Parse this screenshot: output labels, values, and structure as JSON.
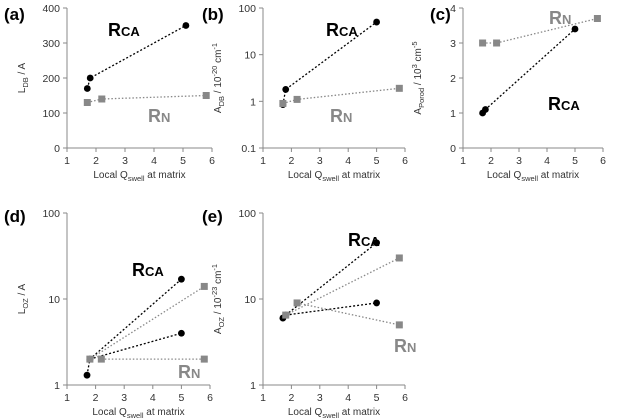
{
  "chart_data": [
    {
      "panel": "(a)",
      "type": "scatter",
      "xlabel": "Local Q_swell at matrix",
      "ylabel": "L_DB / A",
      "xlim": [
        1,
        6
      ],
      "ylim": [
        0,
        400
      ],
      "yscale": "linear",
      "xticks": [
        "1",
        "2",
        "3",
        "4",
        "5",
        "6"
      ],
      "yticks": [
        "0",
        "100",
        "200",
        "300",
        "400"
      ],
      "labels": [
        {
          "text": "RCA",
          "main": "R",
          "sub": "CA",
          "color": "#000000"
        },
        {
          "text": "RN",
          "main": "R",
          "sub": "N",
          "color": "#888888"
        }
      ],
      "series": [
        {
          "name": "RCA",
          "color": "#000000",
          "marker": "circle",
          "x": [
            1.7,
            1.8,
            5.1
          ],
          "y": [
            170,
            200,
            350
          ]
        },
        {
          "name": "RN",
          "color": "#888888",
          "marker": "square",
          "x": [
            1.7,
            2.2,
            5.8
          ],
          "y": [
            130,
            140,
            150
          ]
        }
      ]
    },
    {
      "panel": "(b)",
      "type": "scatter",
      "xlabel": "Local Q_swell at matrix",
      "ylabel": "A_DB / 10^-20 cm^-1",
      "xlim": [
        1,
        6
      ],
      "ylim": [
        0.1,
        100
      ],
      "yscale": "log",
      "xticks": [
        "1",
        "2",
        "3",
        "4",
        "5",
        "6"
      ],
      "yticks": [
        "0.1",
        "1",
        "10",
        "100"
      ],
      "labels": [
        {
          "text": "RCA",
          "main": "R",
          "sub": "CA",
          "color": "#000000"
        },
        {
          "text": "RN",
          "main": "R",
          "sub": "N",
          "color": "#888888"
        }
      ],
      "series": [
        {
          "name": "RCA",
          "color": "#000000",
          "marker": "circle",
          "x": [
            1.7,
            1.8,
            5.0
          ],
          "y": [
            0.85,
            1.8,
            50
          ]
        },
        {
          "name": "RN",
          "color": "#888888",
          "marker": "square",
          "x": [
            1.7,
            2.2,
            5.8
          ],
          "y": [
            0.9,
            1.1,
            1.9
          ]
        }
      ]
    },
    {
      "panel": "(c)",
      "type": "scatter",
      "xlabel": "Local Q_swell at matrix",
      "ylabel": "A_Porod / 10^3 cm^-5",
      "xlim": [
        1,
        6
      ],
      "ylim": [
        0,
        4
      ],
      "yscale": "linear",
      "xticks": [
        "1",
        "2",
        "3",
        "4",
        "5",
        "6"
      ],
      "yticks": [
        "0",
        "1",
        "2",
        "3",
        "4"
      ],
      "labels": [
        {
          "text": "RN",
          "main": "R",
          "sub": "N",
          "color": "#888888"
        },
        {
          "text": "RCA",
          "main": "R",
          "sub": "CA",
          "color": "#000000"
        }
      ],
      "series": [
        {
          "name": "RCA",
          "color": "#000000",
          "marker": "circle",
          "x": [
            1.7,
            1.8,
            5.0
          ],
          "y": [
            1.0,
            1.1,
            3.4
          ]
        },
        {
          "name": "RN",
          "color": "#888888",
          "marker": "square",
          "x": [
            1.7,
            2.2,
            5.8
          ],
          "y": [
            3.0,
            3.0,
            3.7
          ]
        }
      ]
    },
    {
      "panel": "(d)",
      "type": "scatter",
      "xlabel": "Local Q_swell at matrix",
      "ylabel": "L_OZ / A",
      "xlim": [
        1,
        6
      ],
      "ylim": [
        1,
        100
      ],
      "yscale": "log",
      "xticks": [
        "1",
        "2",
        "3",
        "4",
        "5",
        "6"
      ],
      "yticks": [
        "1",
        "10",
        "100"
      ],
      "labels": [
        {
          "text": "RCA",
          "main": "R",
          "sub": "CA",
          "color": "#000000"
        },
        {
          "text": "RN",
          "main": "R",
          "sub": "N",
          "color": "#888888"
        }
      ],
      "series": [
        {
          "name": "RCA",
          "color": "#000000",
          "marker": "circle",
          "x": [
            1.7,
            1.8,
            5.0
          ],
          "y": [
            1.3,
            2.0,
            17
          ]
        },
        {
          "name": "RCA",
          "color": "#000000",
          "marker": "circle",
          "x": [
            1.8,
            5.0
          ],
          "y": [
            2.0,
            4.0
          ]
        },
        {
          "name": "RN",
          "color": "#888888",
          "marker": "square",
          "x": [
            1.8,
            5.8
          ],
          "y": [
            2.0,
            14
          ]
        },
        {
          "name": "RN",
          "color": "#888888",
          "marker": "square",
          "x": [
            2.2,
            5.8
          ],
          "y": [
            2.0,
            2.0
          ]
        }
      ]
    },
    {
      "panel": "(e)",
      "type": "scatter",
      "xlabel": "Local Q_swell at matrix",
      "ylabel": "A_OZ / 10^-23 cm^-1",
      "xlim": [
        1,
        6
      ],
      "ylim": [
        1,
        100
      ],
      "yscale": "log",
      "xticks": [
        "1",
        "2",
        "3",
        "4",
        "5",
        "6"
      ],
      "yticks": [
        "1",
        "10",
        "100"
      ],
      "labels": [
        {
          "text": "RCA",
          "main": "R",
          "sub": "CA",
          "color": "#000000"
        },
        {
          "text": "RN",
          "main": "R",
          "sub": "N",
          "color": "#888888"
        }
      ],
      "series": [
        {
          "name": "RCA",
          "color": "#000000",
          "marker": "circle",
          "x": [
            1.7,
            1.8,
            5.0
          ],
          "y": [
            6,
            6.5,
            45
          ]
        },
        {
          "name": "RCA",
          "color": "#000000",
          "marker": "circle",
          "x": [
            1.8,
            5.0
          ],
          "y": [
            6.5,
            9
          ]
        },
        {
          "name": "RN",
          "color": "#888888",
          "marker": "square",
          "x": [
            1.8,
            5.8
          ],
          "y": [
            6.5,
            30
          ]
        },
        {
          "name": "RN",
          "color": "#888888",
          "marker": "square",
          "x": [
            2.2,
            5.8
          ],
          "y": [
            9,
            5
          ]
        }
      ]
    }
  ]
}
